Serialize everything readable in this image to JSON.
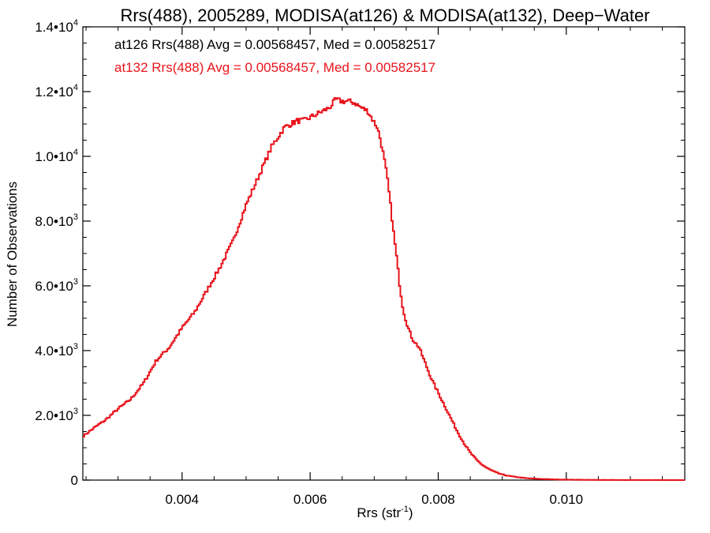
{
  "chart_data": {
    "type": "line",
    "title": "Rrs(488), 2005289, MODISA(at126) & MODISA(at132), Deep−Water",
    "xlabel": "Rrs (str",
    "xlabel_sup": "-1",
    "xlabel_close": ")",
    "ylabel": "Number of Observations",
    "xlim": [
      0.00245,
      0.01185
    ],
    "ylim": [
      0,
      14000
    ],
    "grid": false,
    "x_ticks": [
      {
        "value": 0.004,
        "label": "0.004"
      },
      {
        "value": 0.006,
        "label": "0.006"
      },
      {
        "value": 0.008,
        "label": "0.008"
      },
      {
        "value": 0.01,
        "label": "0.010"
      }
    ],
    "y_ticks": [
      {
        "value": 0,
        "label": "0",
        "exp": ""
      },
      {
        "value": 2000,
        "label": "2.0•10",
        "exp": "3"
      },
      {
        "value": 4000,
        "label": "4.0•10",
        "exp": "3"
      },
      {
        "value": 6000,
        "label": "6.0•10",
        "exp": "3"
      },
      {
        "value": 8000,
        "label": "8.0•10",
        "exp": "3"
      },
      {
        "value": 10000,
        "label": "1.0•10",
        "exp": "4"
      },
      {
        "value": 12000,
        "label": "1.2•10",
        "exp": "4"
      },
      {
        "value": 14000,
        "label": "1.4•10",
        "exp": "4"
      }
    ],
    "annotations": [
      {
        "text": "at126 Rrs(488) Avg = 0.00568457, Med = 0.00582517",
        "color": "#000000"
      },
      {
        "text": "at132 Rrs(488) Avg = 0.00568457, Med = 0.00582517",
        "color": "#e8141c"
      }
    ],
    "series": [
      {
        "color": "#e8141c",
        "x": [
          0.00245,
          0.00265,
          0.0028,
          0.003,
          0.0032,
          0.0034,
          0.0036,
          0.0038,
          0.004,
          0.0042,
          0.0044,
          0.0046,
          0.0048,
          0.005,
          0.0052,
          0.0054,
          0.0055,
          0.0056,
          0.0057,
          0.0058,
          0.0059,
          0.006,
          0.0061,
          0.0062,
          0.0063,
          0.0064,
          0.0065,
          0.0066,
          0.0067,
          0.0068,
          0.0069,
          0.007,
          0.00705,
          0.0071,
          0.00715,
          0.0072,
          0.00725,
          0.0073,
          0.00735,
          0.0074,
          0.00745,
          0.0075,
          0.00755,
          0.0076,
          0.0077,
          0.0078,
          0.0079,
          0.008,
          0.0081,
          0.0082,
          0.0083,
          0.0084,
          0.0085,
          0.0086,
          0.0087,
          0.0088,
          0.0089,
          0.009,
          0.0091,
          0.0092,
          0.0093,
          0.0094,
          0.0096,
          0.0098,
          0.01,
          0.0102,
          0.0104,
          0.0106,
          0.0108,
          0.011,
          0.0114,
          0.01185
        ],
        "values": [
          1350,
          1650,
          1850,
          2200,
          2500,
          3000,
          3700,
          4100,
          4700,
          5200,
          5900,
          6600,
          7400,
          8500,
          9400,
          10300,
          10600,
          10900,
          11000,
          11100,
          11100,
          11200,
          11300,
          11400,
          11500,
          11750,
          11700,
          11700,
          11650,
          11500,
          11400,
          11050,
          10900,
          10500,
          10000,
          9400,
          8600,
          7700,
          6900,
          6000,
          5300,
          4900,
          4600,
          4350,
          4100,
          3600,
          3100,
          2700,
          2300,
          1900,
          1500,
          1150,
          850,
          620,
          450,
          330,
          240,
          170,
          130,
          100,
          75,
          55,
          35,
          22,
          15,
          10,
          7,
          5,
          3,
          2,
          1,
          0
        ]
      }
    ]
  }
}
